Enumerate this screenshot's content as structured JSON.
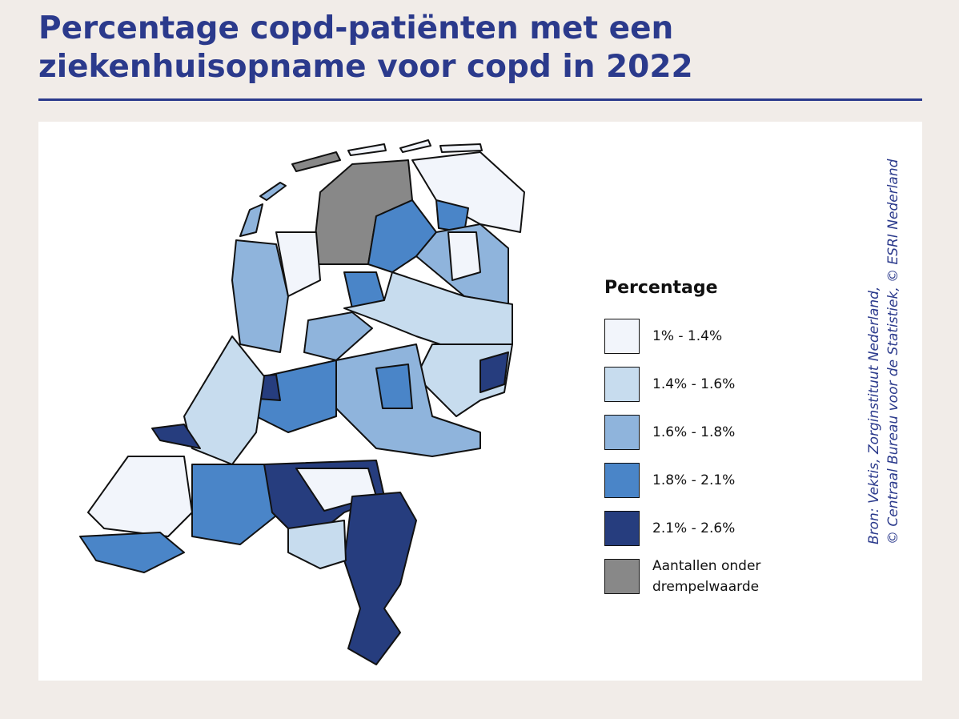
{
  "header": {
    "title_lines": [
      "Percentage copd-patiënten met een",
      "ziekenhuisopname voor copd in 2022"
    ]
  },
  "legend": {
    "title": "Percentage",
    "items": [
      {
        "label": "1% - 1.4%",
        "color": "#f2f5fb"
      },
      {
        "label": "1.4% - 1.6%",
        "color": "#c7dcee"
      },
      {
        "label": "1.6% - 1.8%",
        "color": "#8fb4dc"
      },
      {
        "label": "1.8% - 2.1%",
        "color": "#4a85c8"
      },
      {
        "label": "2.1% - 2.6%",
        "color": "#263d7e"
      },
      {
        "label": "Aantallen onder drempelwaarde",
        "color": "#888888"
      }
    ]
  },
  "source": [
    "Bron: Vektis, Zorginstituut Nederland,",
    "© Centraal Bureau voor de Statistiek, © ESRI Nederland"
  ]
}
